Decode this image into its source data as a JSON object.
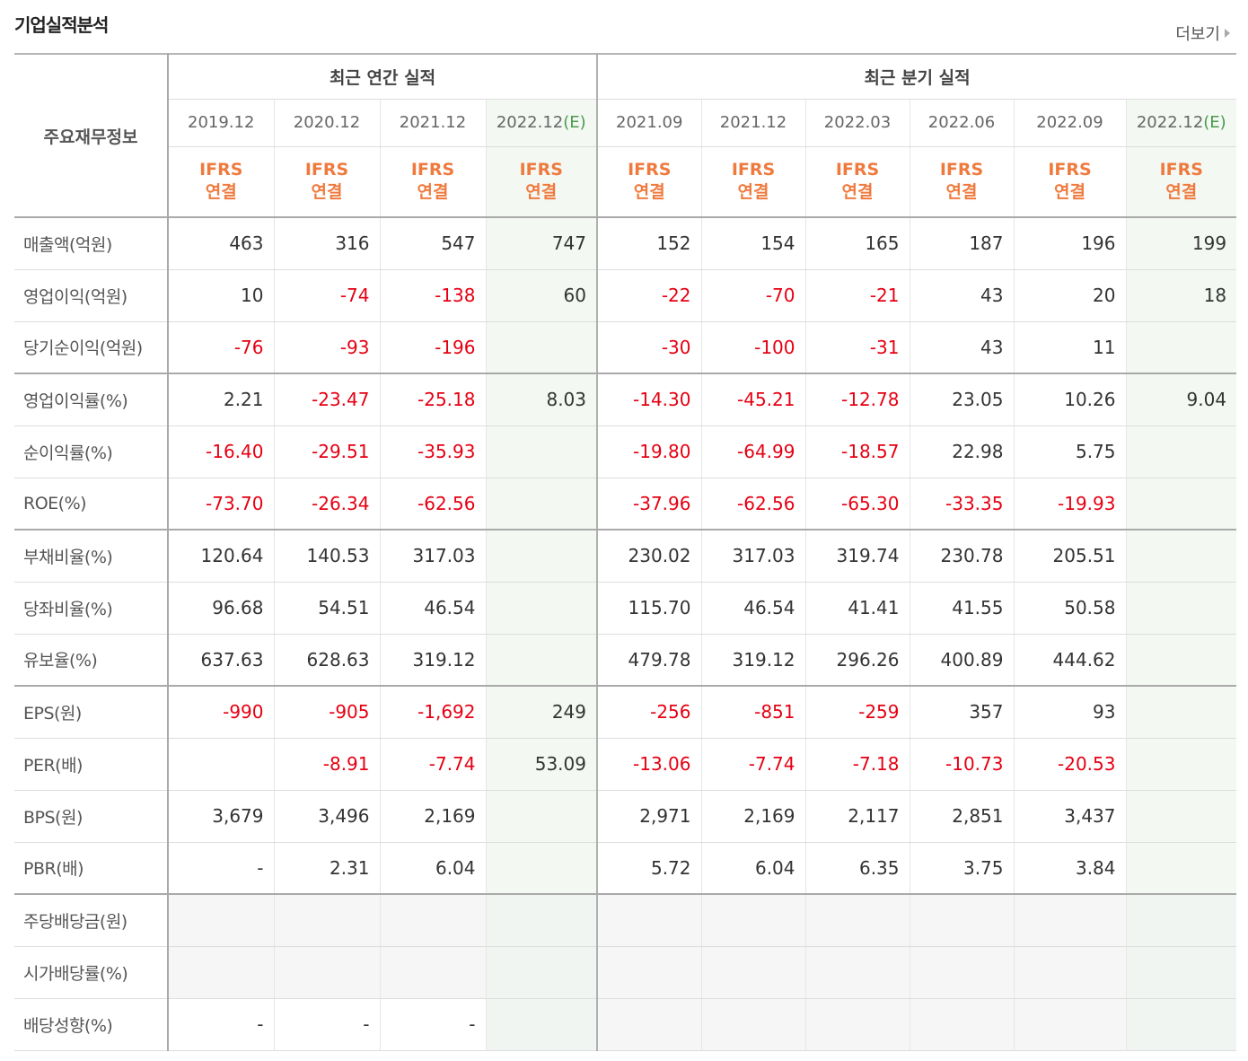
{
  "header": {
    "title": "기업실적분석",
    "more": "더보기"
  },
  "table": {
    "corner": "주요재무정보",
    "groups": [
      {
        "label": "최근 연간 실적",
        "span": 4
      },
      {
        "label": "최근 분기 실적",
        "span": 6
      }
    ],
    "columns": [
      {
        "date": "2019.12",
        "est": null,
        "basis": [
          "IFRS",
          "연결"
        ]
      },
      {
        "date": "2020.12",
        "est": null,
        "basis": [
          "IFRS",
          "연결"
        ]
      },
      {
        "date": "2021.12",
        "est": null,
        "basis": [
          "IFRS",
          "연결"
        ]
      },
      {
        "date": "2022.12",
        "est": "(E)",
        "basis": [
          "IFRS",
          "연결"
        ]
      },
      {
        "date": "2021.09",
        "est": null,
        "basis": [
          "IFRS",
          "연결"
        ]
      },
      {
        "date": "2021.12",
        "est": null,
        "basis": [
          "IFRS",
          "연결"
        ]
      },
      {
        "date": "2022.03",
        "est": null,
        "basis": [
          "IFRS",
          "연결"
        ]
      },
      {
        "date": "2022.06",
        "est": null,
        "basis": [
          "IFRS",
          "연결"
        ]
      },
      {
        "date": "2022.09",
        "est": null,
        "basis": [
          "IFRS",
          "연결"
        ]
      },
      {
        "date": "2022.12",
        "est": "(E)",
        "basis": [
          "IFRS",
          "연결"
        ]
      }
    ],
    "sections": [
      [
        {
          "label": "매출액(억원)",
          "values": [
            "463",
            "316",
            "547",
            "747",
            "152",
            "154",
            "165",
            "187",
            "196",
            "199"
          ]
        },
        {
          "label": "영업이익(억원)",
          "values": [
            "10",
            "-74",
            "-138",
            "60",
            "-22",
            "-70",
            "-21",
            "43",
            "20",
            "18"
          ]
        },
        {
          "label": "당기순이익(억원)",
          "values": [
            "-76",
            "-93",
            "-196",
            null,
            "-30",
            "-100",
            "-31",
            "43",
            "11",
            null
          ]
        }
      ],
      [
        {
          "label": "영업이익률(%)",
          "values": [
            "2.21",
            "-23.47",
            "-25.18",
            "8.03",
            "-14.30",
            "-45.21",
            "-12.78",
            "23.05",
            "10.26",
            "9.04"
          ]
        },
        {
          "label": "순이익률(%)",
          "values": [
            "-16.40",
            "-29.51",
            "-35.93",
            null,
            "-19.80",
            "-64.99",
            "-18.57",
            "22.98",
            "5.75",
            null
          ]
        },
        {
          "label": "ROE(%)",
          "values": [
            "-73.70",
            "-26.34",
            "-62.56",
            null,
            "-37.96",
            "-62.56",
            "-65.30",
            "-33.35",
            "-19.93",
            null
          ]
        }
      ],
      [
        {
          "label": "부채비율(%)",
          "values": [
            "120.64",
            "140.53",
            "317.03",
            null,
            "230.02",
            "317.03",
            "319.74",
            "230.78",
            "205.51",
            null
          ]
        },
        {
          "label": "당좌비율(%)",
          "values": [
            "96.68",
            "54.51",
            "46.54",
            null,
            "115.70",
            "46.54",
            "41.41",
            "41.55",
            "50.58",
            null
          ]
        },
        {
          "label": "유보율(%)",
          "values": [
            "637.63",
            "628.63",
            "319.12",
            null,
            "479.78",
            "319.12",
            "296.26",
            "400.89",
            "444.62",
            null
          ]
        }
      ],
      [
        {
          "label": "EPS(원)",
          "values": [
            "-990",
            "-905",
            "-1,692",
            "249",
            "-256",
            "-851",
            "-259",
            "357",
            "93",
            null
          ]
        },
        {
          "label": "PER(배)",
          "values": [
            null,
            "-8.91",
            "-7.74",
            "53.09",
            "-13.06",
            "-7.74",
            "-7.18",
            "-10.73",
            "-20.53",
            null
          ]
        },
        {
          "label": "BPS(원)",
          "values": [
            "3,679",
            "3,496",
            "2,169",
            null,
            "2,971",
            "2,169",
            "2,117",
            "2,851",
            "3,437",
            null
          ]
        },
        {
          "label": "PBR(배)",
          "values": [
            "-",
            "2.31",
            "6.04",
            null,
            "5.72",
            "6.04",
            "6.35",
            "3.75",
            "3.84",
            null
          ]
        }
      ],
      [
        {
          "label": "주당배당금(원)",
          "values": [
            null,
            null,
            null,
            null,
            null,
            null,
            null,
            null,
            null,
            null
          ]
        },
        {
          "label": "시가배당률(%)",
          "values": [
            null,
            null,
            null,
            null,
            null,
            null,
            null,
            null,
            null,
            null
          ]
        },
        {
          "label": "배당성향(%)",
          "values": [
            "-",
            "-",
            "-",
            null,
            null,
            null,
            null,
            null,
            null,
            null
          ]
        }
      ]
    ]
  }
}
